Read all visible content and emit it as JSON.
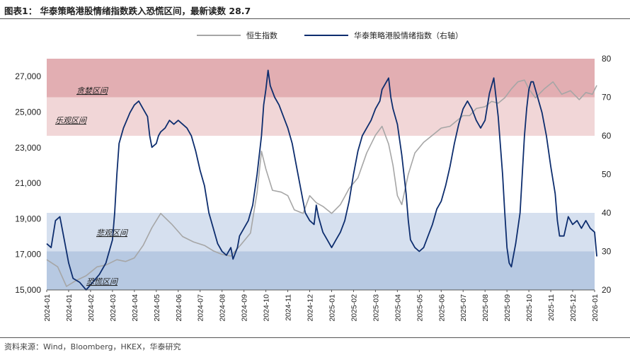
{
  "header": {
    "title": "图表1： 华泰策略港股情绪指数跌入恐慌区间，最新读数 28.7"
  },
  "footer": {
    "source": "资料来源：Wind，Bloomberg，HKEX，华泰研究"
  },
  "colors": {
    "hsi_line": "#a6a6a6",
    "sentiment_line": "#0d2d6e",
    "greed_zone": "#e2aeb2",
    "optimism_zone": "#f1d6d7",
    "pessimism_zone": "#d6e0ef",
    "panic_zone": "#b7c9e2"
  },
  "chart_data": {
    "type": "line",
    "x": [
      "2024-01",
      "2024-01",
      "2024-02",
      "2024-03",
      "2024-04",
      "2024-05",
      "2024-06",
      "2024-07",
      "2024-08",
      "2024-09",
      "2024-10",
      "2024-11",
      "2024-12",
      "2025-01",
      "2025-02",
      "2025-03",
      "2025-04",
      "2025-05",
      "2025-06",
      "2025-07",
      "2025-08",
      "2025-09",
      "2025-10",
      "2025-11",
      "2025-12",
      "2026-01"
    ],
    "left_axis": {
      "ylim": [
        15000,
        28000
      ],
      "ticks": [
        "15,000",
        "17,000",
        "19,000",
        "21,000",
        "23,000",
        "25,000",
        "27,000"
      ]
    },
    "right_axis": {
      "ylim": [
        20,
        80
      ],
      "ticks": [
        "20",
        "30",
        "40",
        "50",
        "60",
        "70",
        "80"
      ]
    },
    "zones": [
      {
        "label": "贪婪区间",
        "range": [
          70,
          80
        ]
      },
      {
        "label": "乐观区间",
        "range": [
          60,
          70
        ]
      },
      {
        "label": "悲观区间",
        "range": [
          30,
          40
        ]
      },
      {
        "label": "恐慌区间",
        "range": [
          20,
          30
        ]
      }
    ],
    "series": [
      {
        "name": "恒生指数",
        "axis": "left",
        "points": [
          [
            0,
            16700
          ],
          [
            0.5,
            16300
          ],
          [
            0.9,
            15200
          ],
          [
            1.3,
            15500
          ],
          [
            1.8,
            15800
          ],
          [
            2.3,
            16300
          ],
          [
            2.7,
            16400
          ],
          [
            3.2,
            16700
          ],
          [
            3.6,
            16600
          ],
          [
            4.0,
            16800
          ],
          [
            4.4,
            17500
          ],
          [
            4.8,
            18500
          ],
          [
            5.2,
            19300
          ],
          [
            5.7,
            18700
          ],
          [
            6.2,
            18000
          ],
          [
            6.7,
            17700
          ],
          [
            7.2,
            17500
          ],
          [
            7.6,
            17200
          ],
          [
            8.0,
            17000
          ],
          [
            8.4,
            16900
          ],
          [
            8.9,
            17600
          ],
          [
            9.3,
            18200
          ],
          [
            9.6,
            20500
          ],
          [
            9.8,
            22800
          ],
          [
            10.0,
            21800
          ],
          [
            10.3,
            20600
          ],
          [
            10.7,
            20500
          ],
          [
            11.0,
            20300
          ],
          [
            11.3,
            19500
          ],
          [
            11.7,
            19300
          ],
          [
            12.0,
            20300
          ],
          [
            12.3,
            19900
          ],
          [
            12.6,
            19700
          ],
          [
            13.0,
            19300
          ],
          [
            13.4,
            19800
          ],
          [
            13.8,
            20700
          ],
          [
            14.2,
            21300
          ],
          [
            14.6,
            22700
          ],
          [
            15.0,
            23700
          ],
          [
            15.3,
            24200
          ],
          [
            15.6,
            23200
          ],
          [
            15.8,
            22000
          ],
          [
            16.0,
            20300
          ],
          [
            16.2,
            19800
          ],
          [
            16.5,
            21500
          ],
          [
            16.8,
            22700
          ],
          [
            17.2,
            23300
          ],
          [
            17.6,
            23700
          ],
          [
            18.0,
            24100
          ],
          [
            18.4,
            24200
          ],
          [
            18.7,
            24500
          ],
          [
            19.0,
            24800
          ],
          [
            19.3,
            24800
          ],
          [
            19.6,
            25200
          ],
          [
            20.0,
            25300
          ],
          [
            20.3,
            25600
          ],
          [
            20.6,
            25500
          ],
          [
            20.9,
            25800
          ],
          [
            21.2,
            26300
          ],
          [
            21.5,
            26700
          ],
          [
            21.8,
            26800
          ],
          [
            22.0,
            26300
          ],
          [
            22.3,
            25800
          ],
          [
            22.7,
            26300
          ],
          [
            23.1,
            26700
          ],
          [
            23.5,
            26000
          ],
          [
            23.9,
            26200
          ],
          [
            24.3,
            25700
          ],
          [
            24.6,
            26100
          ],
          [
            24.9,
            26000
          ],
          [
            25.1,
            26500
          ]
        ]
      },
      {
        "name": "华泰策略港股情绪指数（右轴）",
        "axis": "right",
        "points": [
          [
            0,
            32
          ],
          [
            0.2,
            31
          ],
          [
            0.4,
            38
          ],
          [
            0.6,
            39
          ],
          [
            0.8,
            33
          ],
          [
            1.0,
            27
          ],
          [
            1.2,
            23
          ],
          [
            1.5,
            22
          ],
          [
            1.8,
            20
          ],
          [
            2.1,
            22
          ],
          [
            2.4,
            24
          ],
          [
            2.7,
            27
          ],
          [
            3.0,
            33
          ],
          [
            3.1,
            40
          ],
          [
            3.2,
            50
          ],
          [
            3.3,
            58
          ],
          [
            3.5,
            62
          ],
          [
            3.8,
            66
          ],
          [
            4.0,
            68
          ],
          [
            4.2,
            69
          ],
          [
            4.4,
            67
          ],
          [
            4.6,
            65
          ],
          [
            4.7,
            60
          ],
          [
            4.8,
            57
          ],
          [
            5.0,
            58
          ],
          [
            5.1,
            60
          ],
          [
            5.2,
            61
          ],
          [
            5.4,
            62
          ],
          [
            5.6,
            64
          ],
          [
            5.8,
            63
          ],
          [
            6.0,
            64
          ],
          [
            6.2,
            63
          ],
          [
            6.4,
            62
          ],
          [
            6.6,
            60
          ],
          [
            6.8,
            56
          ],
          [
            7.0,
            51
          ],
          [
            7.2,
            47
          ],
          [
            7.4,
            40
          ],
          [
            7.6,
            36
          ],
          [
            7.8,
            32
          ],
          [
            8.0,
            30
          ],
          [
            8.2,
            29
          ],
          [
            8.4,
            31
          ],
          [
            8.5,
            28
          ],
          [
            8.7,
            31
          ],
          [
            8.8,
            34
          ],
          [
            9.0,
            36
          ],
          [
            9.2,
            38
          ],
          [
            9.4,
            42
          ],
          [
            9.6,
            50
          ],
          [
            9.8,
            60
          ],
          [
            9.9,
            68
          ],
          [
            10.0,
            72
          ],
          [
            10.1,
            77
          ],
          [
            10.2,
            73
          ],
          [
            10.4,
            70
          ],
          [
            10.6,
            68
          ],
          [
            10.8,
            65
          ],
          [
            11.0,
            62
          ],
          [
            11.2,
            58
          ],
          [
            11.4,
            52
          ],
          [
            11.6,
            46
          ],
          [
            11.8,
            40
          ],
          [
            12.0,
            38
          ],
          [
            12.2,
            37
          ],
          [
            12.3,
            42
          ],
          [
            12.4,
            39
          ],
          [
            12.6,
            35
          ],
          [
            12.8,
            33
          ],
          [
            13.0,
            31
          ],
          [
            13.2,
            33
          ],
          [
            13.4,
            35
          ],
          [
            13.6,
            38
          ],
          [
            13.8,
            43
          ],
          [
            14.0,
            50
          ],
          [
            14.2,
            56
          ],
          [
            14.4,
            60
          ],
          [
            14.6,
            62
          ],
          [
            14.8,
            64
          ],
          [
            15.0,
            67
          ],
          [
            15.2,
            69
          ],
          [
            15.3,
            72
          ],
          [
            15.5,
            74
          ],
          [
            15.6,
            75
          ],
          [
            15.7,
            70
          ],
          [
            15.8,
            67
          ],
          [
            16.0,
            63
          ],
          [
            16.2,
            55
          ],
          [
            16.4,
            45
          ],
          [
            16.5,
            38
          ],
          [
            16.6,
            33
          ],
          [
            16.8,
            31
          ],
          [
            17.0,
            30
          ],
          [
            17.2,
            31
          ],
          [
            17.4,
            34
          ],
          [
            17.6,
            37
          ],
          [
            17.8,
            41
          ],
          [
            18.0,
            43
          ],
          [
            18.2,
            47
          ],
          [
            18.4,
            52
          ],
          [
            18.6,
            58
          ],
          [
            18.8,
            63
          ],
          [
            19.0,
            67
          ],
          [
            19.2,
            69
          ],
          [
            19.4,
            67
          ],
          [
            19.6,
            64
          ],
          [
            19.8,
            62
          ],
          [
            20.0,
            64
          ],
          [
            20.2,
            71
          ],
          [
            20.4,
            75
          ],
          [
            20.6,
            65
          ],
          [
            20.8,
            50
          ],
          [
            20.9,
            40
          ],
          [
            21.0,
            31
          ],
          [
            21.1,
            27
          ],
          [
            21.2,
            26
          ],
          [
            21.4,
            32
          ],
          [
            21.6,
            40
          ],
          [
            21.7,
            50
          ],
          [
            21.8,
            60
          ],
          [
            21.9,
            67
          ],
          [
            22.0,
            72
          ],
          [
            22.1,
            74
          ],
          [
            22.2,
            74
          ],
          [
            22.4,
            70
          ],
          [
            22.6,
            66
          ],
          [
            22.8,
            60
          ],
          [
            23.0,
            52
          ],
          [
            23.2,
            45
          ],
          [
            23.3,
            38
          ],
          [
            23.4,
            34
          ],
          [
            23.6,
            34
          ],
          [
            23.8,
            39
          ],
          [
            24.0,
            37
          ],
          [
            24.2,
            38
          ],
          [
            24.4,
            36
          ],
          [
            24.6,
            38
          ],
          [
            24.8,
            36
          ],
          [
            25.0,
            35
          ],
          [
            25.1,
            28.7
          ]
        ]
      }
    ]
  }
}
